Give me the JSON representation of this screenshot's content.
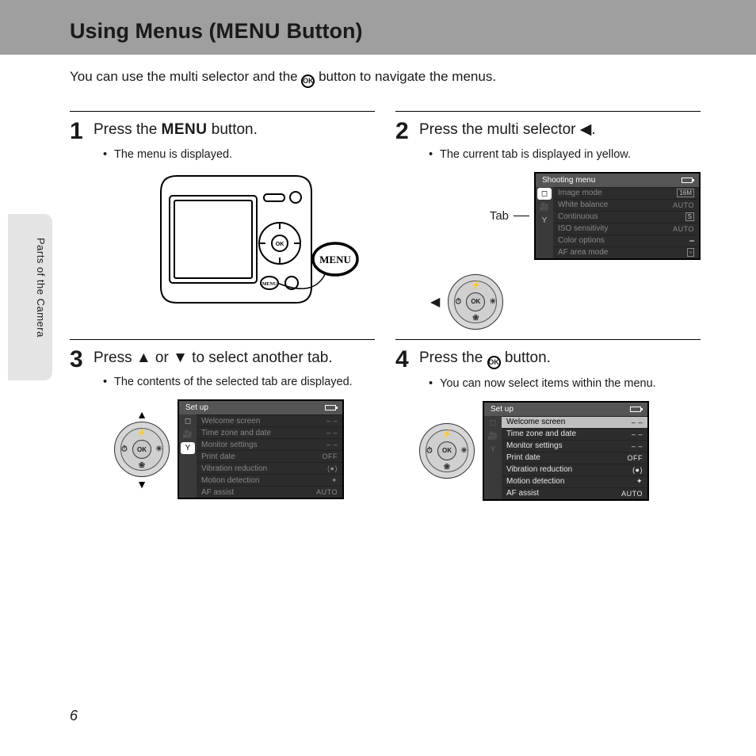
{
  "header": {
    "prefix": "Using Menus (",
    "menu_word": "MENU",
    "suffix": " Button)"
  },
  "intro": {
    "before": "You can use the multi selector and the ",
    "after": " button to navigate the menus."
  },
  "side_tab": "Parts of the Camera",
  "page_number": "6",
  "steps": {
    "s1": {
      "num": "1",
      "title_before": "Press the ",
      "title_menu": "MENU",
      "title_after": " button.",
      "bullet": "The menu is displayed."
    },
    "s2": {
      "num": "2",
      "title_before": "Press the multi selector ",
      "title_after": ".",
      "bullet": "The current tab is displayed in yellow.",
      "tab_label": "Tab",
      "menu": {
        "title": "Shooting menu",
        "rows": [
          {
            "label": "Image mode",
            "val_type": "box",
            "val": "16M"
          },
          {
            "label": "White balance",
            "val_type": "text",
            "val": "AUTO"
          },
          {
            "label": "Continuous",
            "val_type": "box",
            "val": "S"
          },
          {
            "label": "ISO sensitivity",
            "val_type": "text",
            "val": "AUTO"
          },
          {
            "label": "Color options",
            "val_type": "box",
            "val": ""
          },
          {
            "label": "AF area mode",
            "val_type": "box",
            "val": "▫"
          }
        ]
      }
    },
    "s3": {
      "num": "3",
      "title": "Press ▲ or ▼ to select another tab.",
      "bullet": "The contents of the selected tab are displayed.",
      "menu": {
        "title": "Set up",
        "rows": [
          {
            "label": "Welcome screen",
            "val": "– –"
          },
          {
            "label": "Time zone and date",
            "val": "– –"
          },
          {
            "label": "Monitor settings",
            "val": "– –"
          },
          {
            "label": "Print date",
            "val": "OFF"
          },
          {
            "label": "Vibration reduction",
            "val": "(●)"
          },
          {
            "label": "Motion detection",
            "val": "✦"
          },
          {
            "label": "AF assist",
            "val": "AUTO"
          }
        ]
      }
    },
    "s4": {
      "num": "4",
      "title_before": "Press the ",
      "title_after": " button.",
      "bullet": "You can now select items within the menu.",
      "menu": {
        "title": "Set up",
        "rows": [
          {
            "label": "Welcome screen",
            "val": "– –",
            "hl": true
          },
          {
            "label": "Time zone and date",
            "val": "– –"
          },
          {
            "label": "Monitor settings",
            "val": "– –"
          },
          {
            "label": "Print date",
            "val": "OFF"
          },
          {
            "label": "Vibration reduction",
            "val": "(●)"
          },
          {
            "label": "Motion detection",
            "val": "✦"
          },
          {
            "label": "AF assist",
            "val": "AUTO"
          }
        ]
      }
    }
  },
  "colors": {
    "header_bg": "#9f9f9f",
    "menu_bg": "#2c2c2c",
    "menu_title_bg": "#555555",
    "inactive_text": "#888888",
    "active_text": "#e8e8e8",
    "highlight_bg": "#bfbfbf"
  }
}
